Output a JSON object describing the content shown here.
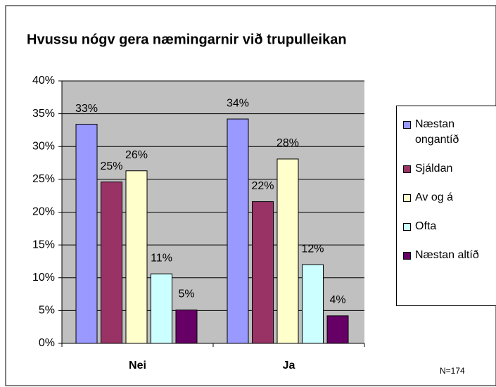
{
  "chart_data": {
    "type": "bar",
    "title": "Hvussu nógv gera næmingarnir við trupulleikan",
    "categories": [
      "Nei",
      "Ja"
    ],
    "series": [
      {
        "name": "Næstan ongantíð",
        "color": "#9999ff",
        "values": [
          33.4,
          34.2
        ],
        "value_labels": [
          "33%",
          "34%"
        ]
      },
      {
        "name": "Sjáldan",
        "color": "#993366",
        "values": [
          24.6,
          21.6
        ],
        "value_labels": [
          "25%",
          "22%"
        ]
      },
      {
        "name": "Av og á",
        "color": "#ffffcc",
        "values": [
          26.3,
          28.1
        ],
        "value_labels": [
          "26%",
          "28%"
        ]
      },
      {
        "name": "Ofta",
        "color": "#ccffff",
        "values": [
          10.6,
          12.0
        ],
        "value_labels": [
          "11%",
          "12%"
        ]
      },
      {
        "name": "Næstan altíð",
        "color": "#660066",
        "values": [
          5.1,
          4.2
        ],
        "value_labels": [
          "5%",
          "4%"
        ]
      }
    ],
    "ylim": [
      0,
      40
    ],
    "yticks": [
      {
        "value": 0,
        "label": "0%"
      },
      {
        "value": 5,
        "label": "5%"
      },
      {
        "value": 10,
        "label": "10%"
      },
      {
        "value": 15,
        "label": "15%"
      },
      {
        "value": 20,
        "label": "20%"
      },
      {
        "value": 25,
        "label": "25%"
      },
      {
        "value": 30,
        "label": "30%"
      },
      {
        "value": 35,
        "label": "35%"
      },
      {
        "value": 40,
        "label": "40%"
      }
    ],
    "grid": true,
    "legend": "right",
    "annotation": "N=174"
  }
}
